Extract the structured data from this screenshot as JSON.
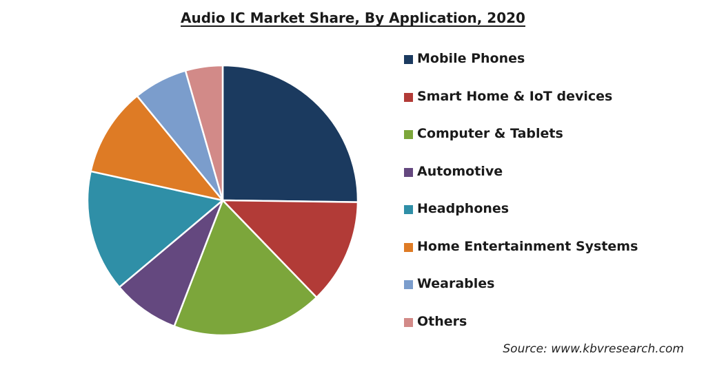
{
  "chart_data": {
    "type": "pie",
    "title": "Audio IC Market Share, By Application, 2020",
    "categories": [
      "Mobile Phones",
      "Smart Home & IoT devices",
      "Computer & Tablets",
      "Automotive",
      "Headphones",
      "Home Entertainment Systems",
      "Wearables",
      "Others"
    ],
    "values": [
      26.1,
      13.0,
      18.7,
      8.3,
      15.1,
      11.0,
      6.7,
      4.6
    ],
    "colors": [
      "#1b3a5f",
      "#b23b37",
      "#7ca63b",
      "#64487f",
      "#2f8fa7",
      "#de7b25",
      "#7b9dcc",
      "#d28a88"
    ],
    "start_angle_deg": 0,
    "direction": "clockwise",
    "legend_position": "right"
  },
  "source": "Source: www.kbvresearch.com"
}
